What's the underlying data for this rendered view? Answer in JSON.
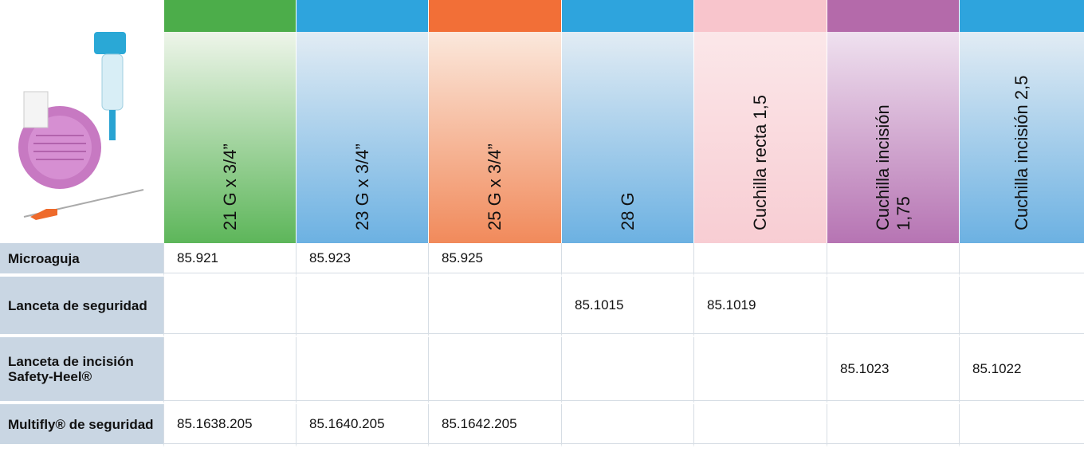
{
  "header": {
    "columns": [
      "21 G x 3/4”",
      "23 G x 3/4”",
      "25 G x 3/4”",
      "28 G",
      "Cuchilla recta 1,5",
      "Cuchilla incisión 1,75",
      "Cuchilla incisión 2,5"
    ]
  },
  "rows": [
    {
      "label": "Microaguja",
      "cells": [
        "85.921",
        "85.923",
        "85.925",
        null,
        null,
        null,
        null
      ]
    },
    {
      "label": "Lanceta de seguridad",
      "cells": [
        null,
        null,
        null,
        "85.1015",
        "85.1019",
        null,
        null
      ]
    },
    {
      "label": "Lanceta de incisión Safety-Heel®",
      "cells": [
        null,
        null,
        null,
        null,
        null,
        "85.1023",
        "85.1022"
      ]
    },
    {
      "label": "Multifly® de seguridad",
      "cells": [
        "85.1638.205",
        "85.1640.205",
        "85.1642.205",
        null,
        null,
        null,
        null
      ]
    }
  ]
}
